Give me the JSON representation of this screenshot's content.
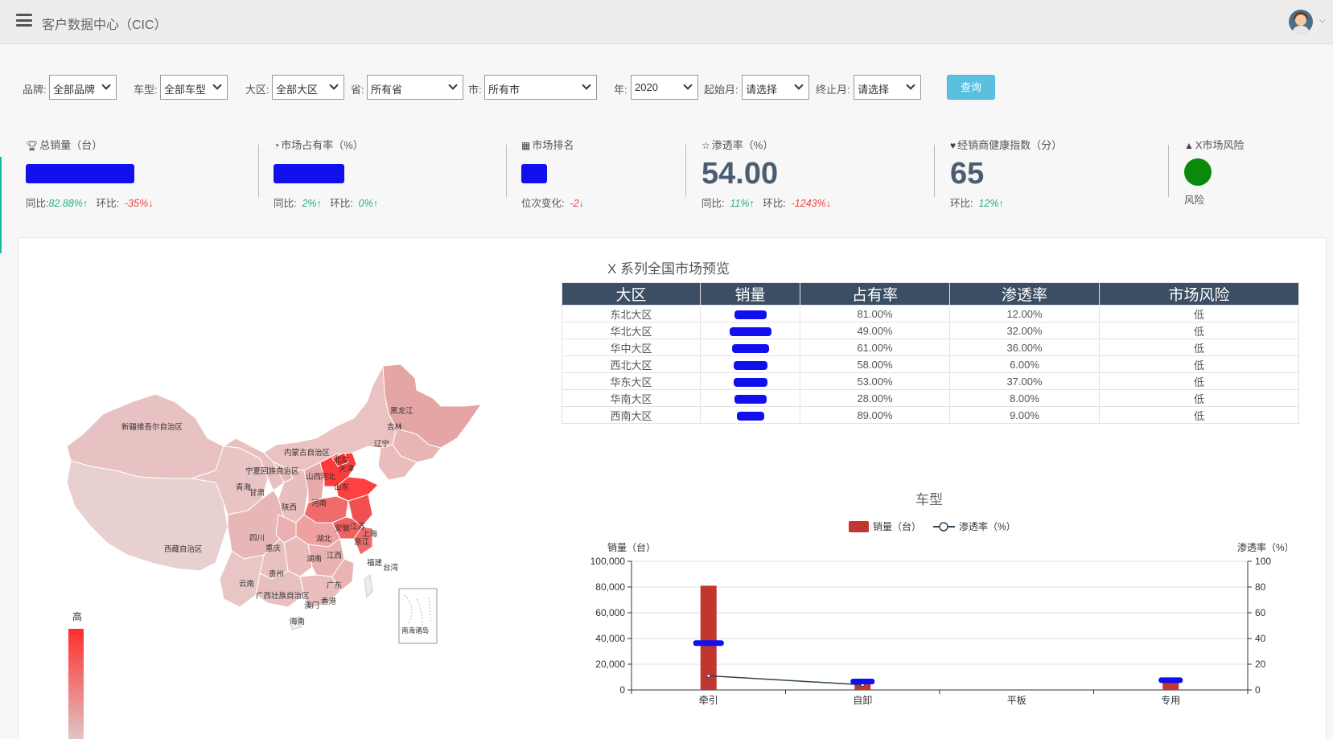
{
  "header": {
    "title": "客户数据中心（CIC）"
  },
  "filters": [
    {
      "label": "品牌:",
      "value": "全部品牌"
    },
    {
      "label": "车型:",
      "value": "全部车型"
    },
    {
      "label": "大区:",
      "value": "全部大区"
    },
    {
      "label": "省:",
      "value": "所有省"
    },
    {
      "label": "市:",
      "value": "所有市"
    },
    {
      "label": "年:",
      "value": "2020"
    },
    {
      "label": "起始月:",
      "value": "请选择"
    },
    {
      "label": "终止月:",
      "value": "请选择"
    }
  ],
  "query_label": "查询",
  "kpis": {
    "sales": {
      "icon": "trophy-icon",
      "label": "总销量（台）",
      "yoy_label": "同比:",
      "yoy": "82.88%",
      "mom_label": "环比:",
      "mom": "-35%"
    },
    "share": {
      "icon": "pie-chart-icon",
      "label": "市场占有率（%）",
      "yoy_label": "同比:",
      "yoy": "2%",
      "mom_label": "环比:",
      "mom": "0%"
    },
    "rank": {
      "icon": "cubes-icon",
      "label": "市场排名",
      "change_label": "位次变化:",
      "change": "-2"
    },
    "penetration": {
      "icon": "star-icon",
      "label": "渗透率（%）",
      "value": "54.00",
      "yoy_label": "同比:",
      "yoy": "11%",
      "mom_label": "环比:",
      "mom": "-1243%"
    },
    "dealer": {
      "icon": "heart-icon",
      "label": "经销商健康指数（分）",
      "value": "65",
      "mom_label": "环比:",
      "mom": "12%"
    },
    "risk": {
      "icon": "warning-icon",
      "label": "X市场风险",
      "status_label": "风险",
      "status_color": "#0a8a0a"
    }
  },
  "map": {
    "legend_high": "高",
    "provinces": [
      "黑龙江",
      "吉林",
      "辽宁",
      "新疆维吾尔自治区",
      "内蒙古自治区",
      "北京",
      "天津",
      "河北",
      "山西",
      "山东",
      "宁夏回族自治区",
      "青海",
      "甘肃",
      "陕西",
      "河南",
      "江苏",
      "安徽",
      "上海",
      "浙江",
      "湖北",
      "四川",
      "重庆",
      "西藏自治区",
      "湖南",
      "江西",
      "贵州",
      "福建",
      "云南",
      "广西壮族自治区",
      "广东",
      "台湾",
      "澳门",
      "香港",
      "海南",
      "南海诸岛"
    ]
  },
  "region_table": {
    "title": "X 系列全国市场预览",
    "columns": [
      "大区",
      "销量",
      "占有率",
      "渗透率",
      "市场风险"
    ],
    "rows": [
      {
        "region": "东北大区",
        "share": "81.00%",
        "penetration": "12.00%",
        "risk": "低"
      },
      {
        "region": "华北大区",
        "share": "49.00%",
        "penetration": "32.00%",
        "risk": "低"
      },
      {
        "region": "华中大区",
        "share": "61.00%",
        "penetration": "36.00%",
        "risk": "低"
      },
      {
        "region": "西北大区",
        "share": "58.00%",
        "penetration": "6.00%",
        "risk": "低"
      },
      {
        "region": "华东大区",
        "share": "53.00%",
        "penetration": "37.00%",
        "risk": "低"
      },
      {
        "region": "华南大区",
        "share": "28.00%",
        "penetration": "8.00%",
        "risk": "低"
      },
      {
        "region": "西南大区",
        "share": "89.00%",
        "penetration": "9.00%",
        "risk": "低"
      }
    ]
  },
  "chart_data": {
    "type": "bar",
    "title": "车型",
    "categories": [
      "牵引",
      "自卸",
      "平板",
      "专用"
    ],
    "series": [
      {
        "name": "销量（台）",
        "type": "bar",
        "color": "#c23531",
        "values": [
          81000,
          5000,
          0,
          6000
        ]
      },
      {
        "name": "渗透率（%）",
        "type": "line",
        "color": "#2f4554",
        "values": [
          11,
          4,
          null,
          null
        ]
      }
    ],
    "ylabel": "销量（台）",
    "y2label": "渗透率（%）",
    "ylim": [
      0,
      100000
    ],
    "y2lim": [
      0,
      100
    ],
    "y_ticks": [
      "0",
      "20,000",
      "40,000",
      "60,000",
      "80,000",
      "100,000"
    ],
    "y2_ticks": [
      "0",
      "20",
      "40",
      "60",
      "80",
      "100"
    ],
    "legend": "top-center",
    "grid": true
  }
}
